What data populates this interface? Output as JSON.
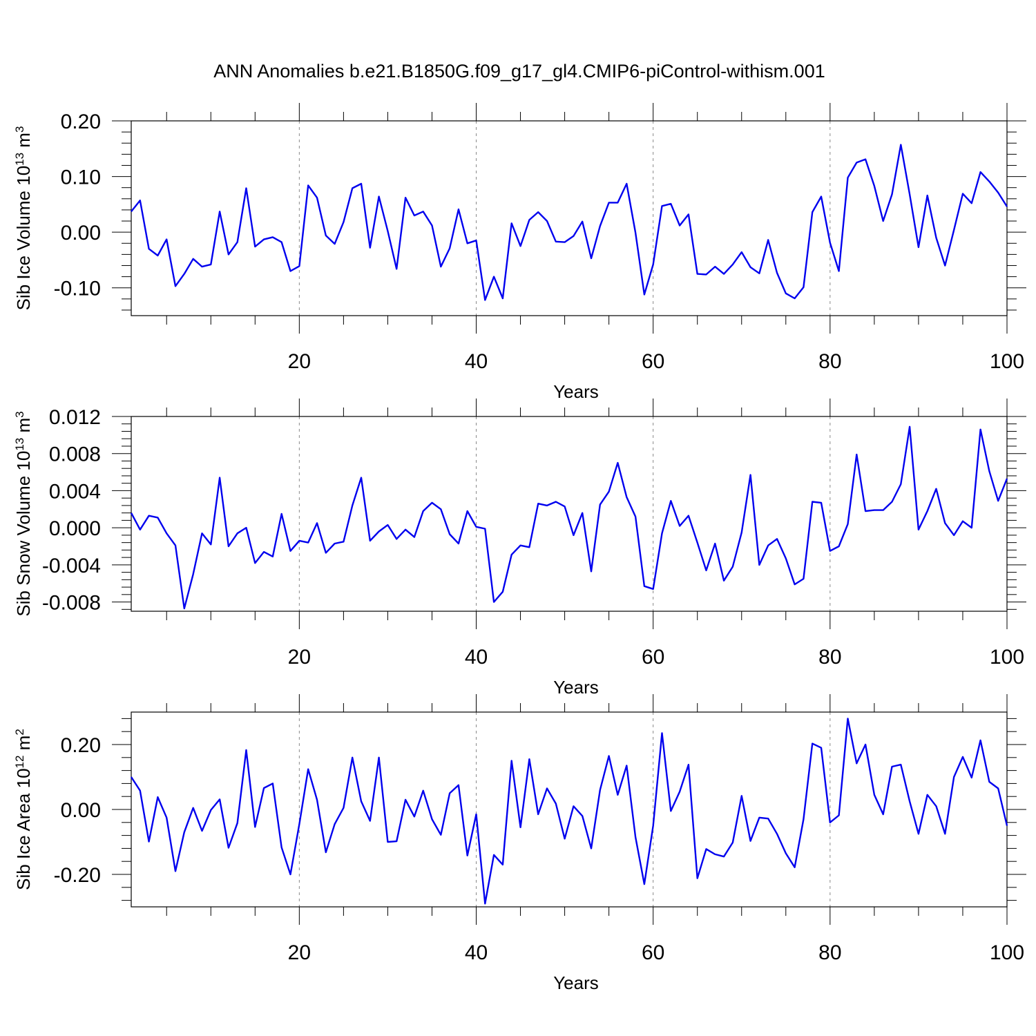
{
  "title": "ANN Anomalies b.e21.B1850G.f09_g17_gl4.CMIP6-piControl-withism.001",
  "chart_data": [
    {
      "type": "line",
      "title": "ANN Anomalies b.e21.B1850G.f09_g17_gl4.CMIP6-piControl-withism.001",
      "ylabel": "Sib Ice Volume",
      "ylabel_scale": "10",
      "ylabel_exp": "13",
      "ylabel_unit": "m",
      "ylabel_unit_exp": "3",
      "xlabel": "Years",
      "xlim": [
        1,
        100
      ],
      "ylim": [
        -0.15,
        0.2
      ],
      "x_ticks": [
        "20",
        "40",
        "60",
        "80",
        "100"
      ],
      "y_ticks": [
        "0.20",
        "0.10",
        "0.00",
        "-0.10"
      ],
      "y_tick_values": [
        0.2,
        0.1,
        0.0,
        -0.1
      ],
      "grid": "vertical dashed at 20, 40, 60, 80",
      "color": "#0000ee",
      "values": [
        0.037,
        0.057,
        -0.03,
        -0.042,
        -0.013,
        -0.097,
        -0.075,
        -0.048,
        -0.062,
        -0.058,
        0.037,
        -0.04,
        -0.018,
        0.079,
        -0.026,
        -0.013,
        -0.009,
        -0.018,
        -0.07,
        -0.061,
        0.084,
        0.062,
        -0.006,
        -0.021,
        0.018,
        0.079,
        0.087,
        -0.028,
        0.064,
        0.002,
        -0.066,
        0.062,
        0.03,
        0.037,
        0.012,
        -0.062,
        -0.029,
        0.041,
        -0.02,
        -0.015,
        -0.122,
        -0.08,
        -0.119,
        0.016,
        -0.025,
        0.022,
        0.036,
        0.02,
        -0.017,
        -0.018,
        -0.007,
        0.019,
        -0.047,
        0.011,
        0.053,
        0.053,
        0.087,
        -0.001,
        -0.112,
        -0.058,
        0.047,
        0.051,
        0.012,
        0.032,
        -0.075,
        -0.076,
        -0.062,
        -0.075,
        -0.058,
        -0.036,
        -0.063,
        -0.074,
        -0.014,
        -0.073,
        -0.11,
        -0.119,
        -0.099,
        0.036,
        0.064,
        -0.019,
        -0.07,
        0.098,
        0.125,
        0.131,
        0.083,
        0.02,
        0.068,
        0.157,
        0.068,
        -0.027,
        0.066,
        -0.01,
        -0.06,
        0.004,
        0.069,
        0.052,
        0.108,
        0.091,
        0.071,
        0.046
      ]
    },
    {
      "type": "line",
      "ylabel": "Sib Snow Volume",
      "ylabel_scale": "10",
      "ylabel_exp": "13",
      "ylabel_unit": "m",
      "ylabel_unit_exp": "3",
      "xlabel": "Years",
      "xlim": [
        1,
        100
      ],
      "ylim": [
        -0.009,
        0.012
      ],
      "x_ticks": [
        "20",
        "40",
        "60",
        "80",
        "100"
      ],
      "y_ticks": [
        "0.012",
        "0.008",
        "0.004",
        "0.000",
        "-0.004",
        "-0.008"
      ],
      "y_tick_values": [
        0.012,
        0.008,
        0.004,
        0.0,
        -0.004,
        -0.008
      ],
      "grid": "vertical dashed at 20, 40, 60, 80",
      "color": "#0000ee",
      "values": [
        0.0016,
        -0.0002,
        0.0013,
        0.0011,
        -0.0006,
        -0.0019,
        -0.0087,
        -0.005,
        -0.0006,
        -0.0018,
        0.0054,
        -0.002,
        -0.0006,
        0.0,
        -0.0038,
        -0.0026,
        -0.0031,
        0.0015,
        -0.0025,
        -0.0014,
        -0.0016,
        0.0005,
        -0.0027,
        -0.0017,
        -0.0015,
        0.0024,
        0.0054,
        -0.0014,
        -0.0004,
        0.0003,
        -0.0012,
        -0.0002,
        -0.001,
        0.0018,
        0.0027,
        0.002,
        -0.0007,
        -0.0017,
        0.0018,
        0.0001,
        -0.0001,
        -0.008,
        -0.0069,
        -0.0029,
        -0.0019,
        -0.0021,
        0.0026,
        0.0024,
        0.0028,
        0.0023,
        -0.0008,
        0.0016,
        -0.0047,
        0.0025,
        0.0039,
        0.007,
        0.0033,
        0.0012,
        -0.0063,
        -0.0066,
        -0.0006,
        0.0029,
        0.0002,
        0.0013,
        -0.0016,
        -0.0046,
        -0.0017,
        -0.0057,
        -0.0042,
        -0.0005,
        0.0057,
        -0.004,
        -0.0019,
        -0.0012,
        -0.0033,
        -0.0061,
        -0.0055,
        0.0028,
        0.0027,
        -0.0025,
        -0.002,
        0.0004,
        0.0079,
        0.0018,
        0.0019,
        0.0019,
        0.0028,
        0.0047,
        0.0109,
        -0.0002,
        0.0018,
        0.0042,
        0.0005,
        -0.0008,
        0.0007,
        0.0,
        0.0106,
        0.0061,
        0.0029,
        0.0053
      ]
    },
    {
      "type": "line",
      "ylabel": "Sib Ice Area",
      "ylabel_scale": "10",
      "ylabel_exp": "12",
      "ylabel_unit": "m",
      "ylabel_unit_exp": "2",
      "xlabel": "Years",
      "xlim": [
        1,
        100
      ],
      "ylim": [
        -0.3,
        0.3
      ],
      "x_ticks": [
        "20",
        "40",
        "60",
        "80",
        "100"
      ],
      "y_ticks": [
        "0.20",
        "0.00",
        "-0.20"
      ],
      "y_tick_values": [
        0.2,
        0.0,
        -0.2
      ],
      "grid": "vertical dashed at 20, 40, 60, 80",
      "color": "#0000ee",
      "values": [
        0.1,
        0.058,
        -0.099,
        0.038,
        -0.025,
        -0.19,
        -0.07,
        0.005,
        -0.066,
        -0.002,
        0.031,
        -0.118,
        -0.042,
        0.183,
        -0.054,
        0.066,
        0.08,
        -0.117,
        -0.2,
        -0.045,
        0.124,
        0.03,
        -0.132,
        -0.045,
        0.005,
        0.16,
        0.025,
        -0.035,
        0.16,
        -0.1,
        -0.098,
        0.03,
        -0.022,
        0.058,
        -0.03,
        -0.078,
        0.05,
        0.075,
        -0.142,
        -0.015,
        -0.29,
        -0.14,
        -0.17,
        0.15,
        -0.055,
        0.155,
        -0.015,
        0.065,
        0.018,
        -0.09,
        0.01,
        -0.02,
        -0.12,
        0.06,
        0.165,
        0.045,
        0.135,
        -0.085,
        -0.23,
        -0.05,
        0.235,
        -0.005,
        0.055,
        0.138,
        -0.212,
        -0.122,
        -0.138,
        -0.145,
        -0.102,
        0.042,
        -0.097,
        -0.025,
        -0.028,
        -0.075,
        -0.135,
        -0.178,
        -0.03,
        0.203,
        0.19,
        -0.04,
        -0.018,
        0.28,
        0.142,
        0.2,
        0.045,
        -0.015,
        0.132,
        0.138,
        0.025,
        -0.075,
        0.045,
        0.01,
        -0.075,
        0.1,
        0.162,
        0.098,
        0.213,
        0.085,
        0.065,
        -0.05
      ]
    }
  ]
}
